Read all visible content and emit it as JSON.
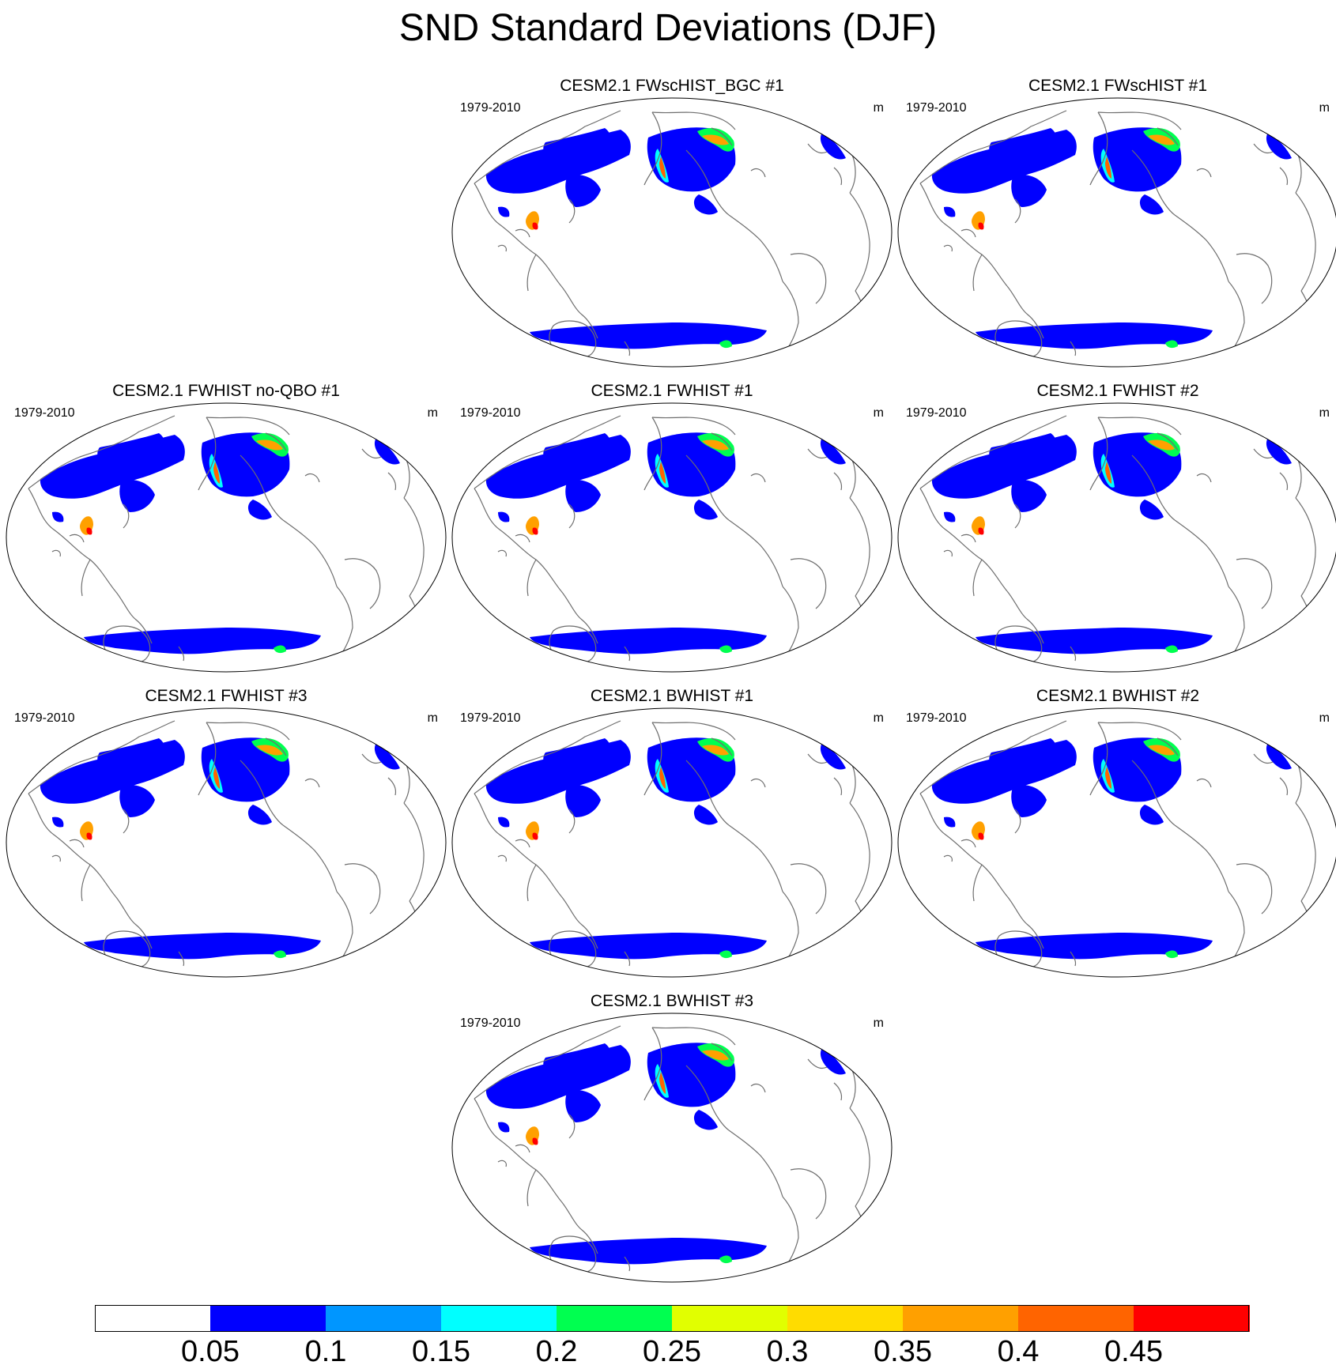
{
  "title": "SND Standard Deviations (DJF)",
  "panels": [
    {
      "title": "CESM2.1 FWscHIST_BGC #1",
      "left_label": "1979-2010",
      "right_label": "m"
    },
    {
      "title": "CESM2.1 FWscHIST #1",
      "left_label": "1979-2010",
      "right_label": "m"
    },
    {
      "title": "CESM2.1 FWHIST no-QBO #1",
      "left_label": "1979-2010",
      "right_label": "m"
    },
    {
      "title": "CESM2.1 FWHIST #1",
      "left_label": "1979-2010",
      "right_label": "m"
    },
    {
      "title": "CESM2.1 FWHIST #2",
      "left_label": "1979-2010",
      "right_label": "m"
    },
    {
      "title": "CESM2.1 FWHIST #3",
      "left_label": "1979-2010",
      "right_label": "m"
    },
    {
      "title": "CESM2.1 BWHIST #1",
      "left_label": "1979-2010",
      "right_label": "m"
    },
    {
      "title": "CESM2.1 BWHIST #2",
      "left_label": "1979-2010",
      "right_label": "m"
    },
    {
      "title": "CESM2.1 BWHIST #3",
      "left_label": "1979-2010",
      "right_label": "m"
    }
  ],
  "colorbar": {
    "labels": [
      "0.05",
      "0.1",
      "0.15",
      "0.2",
      "0.25",
      "0.3",
      "0.35",
      "0.4",
      "0.45"
    ],
    "colors": [
      "#ffffff",
      "#0000ff",
      "#0096ff",
      "#00ffff",
      "#00ff50",
      "#e1ff00",
      "#ffdc00",
      "#ffa000",
      "#ff6400",
      "#ff0000"
    ]
  }
}
